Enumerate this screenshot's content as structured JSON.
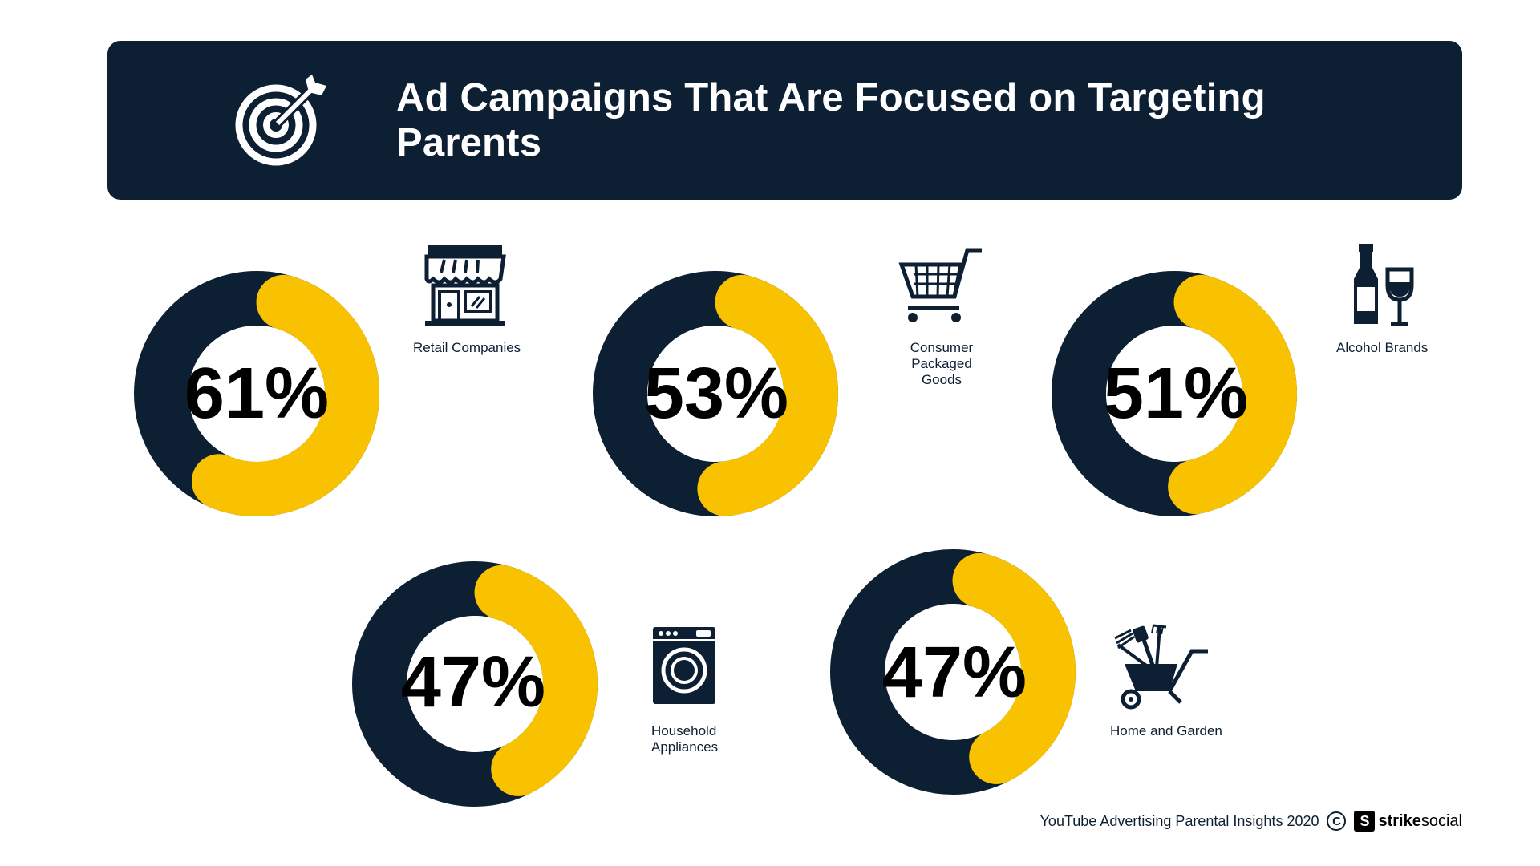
{
  "header": {
    "title": "Ad Campaigns That Are Focused on Targeting Parents",
    "icon": "target-icon"
  },
  "colors": {
    "navy": "#0d1f33",
    "yellow": "#f8c200",
    "text": "#000000"
  },
  "chart_data": {
    "type": "donut",
    "title": "Ad Campaigns That Are Focused on Targeting Parents",
    "unit": "%",
    "items": [
      {
        "category": "Retail Companies",
        "value": 61,
        "label": "61%",
        "icon": "storefront-icon"
      },
      {
        "category": "Consumer Packaged Goods",
        "value": 53,
        "label": "53%",
        "icon": "shopping-cart-icon"
      },
      {
        "category": "Alcohol Brands",
        "value": 51,
        "label": "51%",
        "icon": "wine-bottle-glass-icon"
      },
      {
        "category": "Household Appliances",
        "value": 47,
        "label": "47%",
        "icon": "washing-machine-icon"
      },
      {
        "category": "Home and Garden",
        "value": 47,
        "label": "47%",
        "icon": "wheelbarrow-tools-icon"
      }
    ]
  },
  "labels": {
    "retail": [
      "Retail Companies"
    ],
    "cpg": [
      "Consumer Packaged",
      "Goods"
    ],
    "alcohol": [
      "Alcohol Brands"
    ],
    "appliances": [
      "Household",
      "Appliances"
    ],
    "garden": [
      "Home and Garden"
    ]
  },
  "footer": {
    "source": "YouTube Advertising Parental Insights 2020",
    "copyright_symbol": "C",
    "logo_mark": "S",
    "logo_bold": "strike",
    "logo_regular": "social"
  }
}
